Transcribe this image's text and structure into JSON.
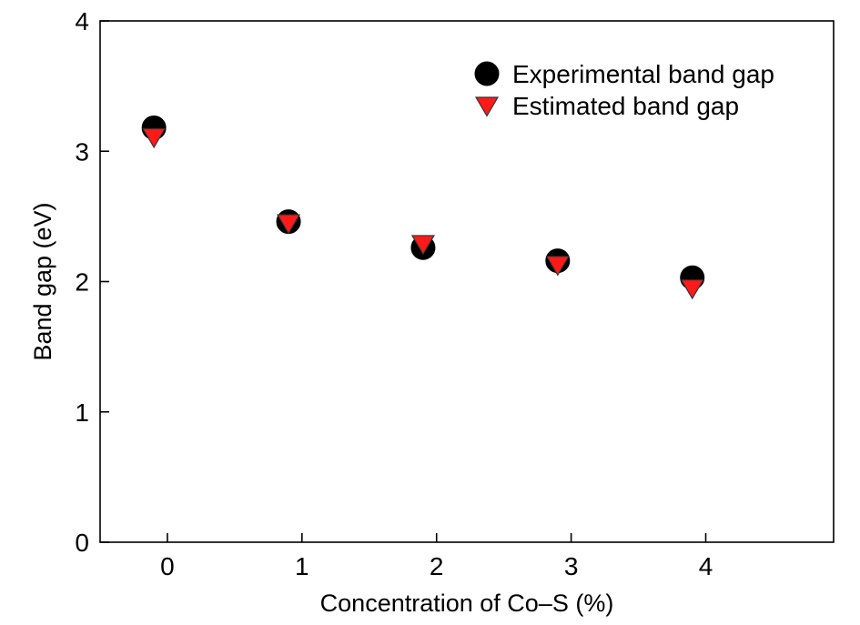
{
  "chart_data": {
    "type": "scatter",
    "title": "",
    "xlabel": "Concentration of Co–S (%)",
    "ylabel": "Band gap (eV)",
    "xlim": [
      -0.5,
      4.95
    ],
    "ylim": [
      0,
      4
    ],
    "xticks": [
      0,
      1,
      2,
      3,
      4
    ],
    "yticks": [
      0,
      1,
      2,
      3,
      4
    ],
    "grid": false,
    "legend_position": "top-right",
    "series": [
      {
        "name": "Experimental band gap",
        "marker": "circle",
        "color": "#000000",
        "x": [
          -0.1,
          0.9,
          1.9,
          2.9,
          3.9
        ],
        "y": [
          3.18,
          2.46,
          2.26,
          2.16,
          2.03
        ]
      },
      {
        "name": "Estimated band gap",
        "marker": "triangle-down",
        "color": "#ff1a1a",
        "x": [
          -0.1,
          0.9,
          1.9,
          2.9,
          3.9
        ],
        "y": [
          3.11,
          2.45,
          2.29,
          2.13,
          1.95
        ]
      }
    ]
  }
}
